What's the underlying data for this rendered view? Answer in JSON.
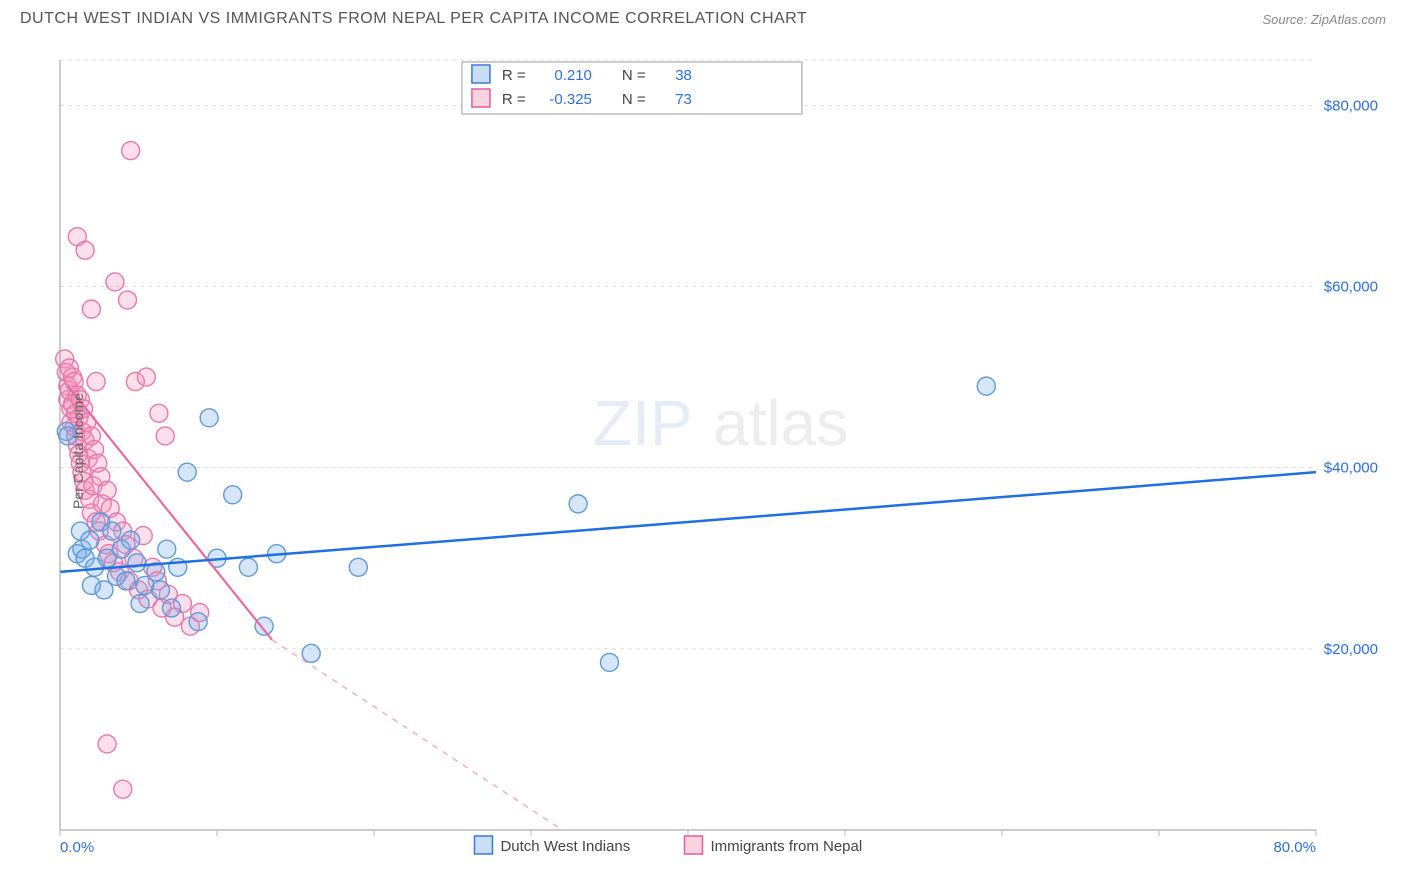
{
  "header": {
    "title": "DUTCH WEST INDIAN VS IMMIGRANTS FROM NEPAL PER CAPITA INCOME CORRELATION CHART",
    "source_prefix": "Source: ",
    "source_name": "ZipAtlas.com"
  },
  "chart": {
    "type": "scatter",
    "ylabel": "Per Capita Income",
    "background_color": "#ffffff",
    "grid_color": "#dcdcdc",
    "axis_color": "#999999",
    "xlim": [
      0,
      80
    ],
    "ylim": [
      0,
      85000
    ],
    "xticks": [
      {
        "pos": 0,
        "label": "0.0%"
      },
      {
        "pos": 10,
        "label": ""
      },
      {
        "pos": 20,
        "label": ""
      },
      {
        "pos": 30,
        "label": ""
      },
      {
        "pos": 40,
        "label": ""
      },
      {
        "pos": 50,
        "label": ""
      },
      {
        "pos": 60,
        "label": ""
      },
      {
        "pos": 70,
        "label": ""
      },
      {
        "pos": 80,
        "label": "80.0%"
      }
    ],
    "yticks": [
      {
        "pos": 20000,
        "label": "$20,000"
      },
      {
        "pos": 40000,
        "label": "$40,000"
      },
      {
        "pos": 60000,
        "label": "$60,000"
      },
      {
        "pos": 80000,
        "label": "$80,000"
      }
    ],
    "watermark": {
      "text1": "ZIP",
      "text2": "atlas",
      "color1": "#9ab8e0",
      "color2": "#b9b9b9"
    },
    "statbox": {
      "rows": [
        {
          "swatch": "blue",
          "r_label": "R =",
          "r_val": "0.210",
          "n_label": "N =",
          "n_val": "38"
        },
        {
          "swatch": "pink",
          "r_label": "R =",
          "r_val": "-0.325",
          "n_label": "N =",
          "n_val": "73"
        }
      ]
    },
    "bottom_legend": [
      {
        "swatch": "blue",
        "label": "Dutch West Indians"
      },
      {
        "swatch": "pink",
        "label": "Immigrants from Nepal"
      }
    ],
    "series": {
      "blue": {
        "color_fill": "rgba(120,170,230,0.30)",
        "color_stroke": "#5f9ad9",
        "marker_r": 9,
        "regression": {
          "x1": 0,
          "y1": 28500,
          "x2": 80,
          "y2": 39500,
          "color": "#1f6fe0"
        },
        "points": [
          [
            0.4,
            44000
          ],
          [
            0.5,
            43500
          ],
          [
            1.1,
            30500
          ],
          [
            1.3,
            33000
          ],
          [
            1.4,
            31000
          ],
          [
            1.6,
            30000
          ],
          [
            1.9,
            32000
          ],
          [
            2.0,
            27000
          ],
          [
            2.2,
            29000
          ],
          [
            2.6,
            34000
          ],
          [
            2.8,
            26500
          ],
          [
            3.0,
            30000
          ],
          [
            3.3,
            33000
          ],
          [
            3.6,
            28000
          ],
          [
            3.9,
            31000
          ],
          [
            4.2,
            27500
          ],
          [
            4.5,
            32000
          ],
          [
            4.9,
            29500
          ],
          [
            5.1,
            25000
          ],
          [
            5.4,
            27000
          ],
          [
            6.1,
            28500
          ],
          [
            6.4,
            26500
          ],
          [
            6.8,
            31000
          ],
          [
            7.1,
            24500
          ],
          [
            7.5,
            29000
          ],
          [
            8.1,
            39500
          ],
          [
            8.8,
            23000
          ],
          [
            9.5,
            45500
          ],
          [
            10.0,
            30000
          ],
          [
            11.0,
            37000
          ],
          [
            12.0,
            29000
          ],
          [
            13.0,
            22500
          ],
          [
            13.8,
            30500
          ],
          [
            16.0,
            19500
          ],
          [
            19.0,
            29000
          ],
          [
            33.0,
            36000
          ],
          [
            35.0,
            18500
          ],
          [
            59.0,
            49000
          ]
        ]
      },
      "pink": {
        "color_fill": "rgba(245,150,185,0.30)",
        "color_stroke": "#e978aa",
        "marker_r": 9,
        "regression_solid": {
          "x1": 0.5,
          "y1": 49000,
          "x2": 13.5,
          "y2": 21000,
          "color": "#e96aa0"
        },
        "regression_dash": {
          "x1": 13.5,
          "y1": 21000,
          "x2": 32.0,
          "y2": 0,
          "color": "#f3b3cc"
        },
        "points": [
          [
            0.3,
            52000
          ],
          [
            0.4,
            50500
          ],
          [
            0.5,
            49000
          ],
          [
            0.5,
            47500
          ],
          [
            0.6,
            51000
          ],
          [
            0.6,
            48500
          ],
          [
            0.7,
            46500
          ],
          [
            0.7,
            45000
          ],
          [
            0.8,
            50000
          ],
          [
            0.8,
            47000
          ],
          [
            0.9,
            44500
          ],
          [
            0.9,
            49500
          ],
          [
            1.0,
            46000
          ],
          [
            1.0,
            43500
          ],
          [
            1.1,
            48000
          ],
          [
            1.1,
            42500
          ],
          [
            1.2,
            45500
          ],
          [
            1.2,
            41500
          ],
          [
            1.3,
            47500
          ],
          [
            1.3,
            40500
          ],
          [
            1.4,
            44000
          ],
          [
            1.4,
            39500
          ],
          [
            1.5,
            46500
          ],
          [
            1.5,
            38500
          ],
          [
            1.6,
            43000
          ],
          [
            1.6,
            37500
          ],
          [
            1.7,
            45000
          ],
          [
            1.8,
            41000
          ],
          [
            1.9,
            36500
          ],
          [
            2.0,
            43500
          ],
          [
            2.0,
            35000
          ],
          [
            2.1,
            38000
          ],
          [
            2.2,
            42000
          ],
          [
            2.3,
            34000
          ],
          [
            2.4,
            40500
          ],
          [
            2.5,
            33000
          ],
          [
            2.6,
            39000
          ],
          [
            2.7,
            36000
          ],
          [
            2.9,
            31500
          ],
          [
            3.0,
            37500
          ],
          [
            3.1,
            30500
          ],
          [
            3.2,
            35500
          ],
          [
            3.4,
            29500
          ],
          [
            3.6,
            34000
          ],
          [
            3.8,
            28500
          ],
          [
            4.0,
            33000
          ],
          [
            4.2,
            31500
          ],
          [
            4.4,
            27500
          ],
          [
            4.7,
            30000
          ],
          [
            5.0,
            26500
          ],
          [
            5.3,
            32500
          ],
          [
            5.6,
            25500
          ],
          [
            5.9,
            29000
          ],
          [
            6.2,
            27500
          ],
          [
            6.5,
            24500
          ],
          [
            6.9,
            26000
          ],
          [
            7.3,
            23500
          ],
          [
            7.8,
            25000
          ],
          [
            8.3,
            22500
          ],
          [
            8.9,
            24000
          ],
          [
            1.1,
            65500
          ],
          [
            1.6,
            64000
          ],
          [
            2.0,
            57500
          ],
          [
            3.5,
            60500
          ],
          [
            4.3,
            58500
          ],
          [
            4.8,
            49500
          ],
          [
            5.5,
            50000
          ],
          [
            6.3,
            46000
          ],
          [
            6.7,
            43500
          ],
          [
            3.0,
            9500
          ],
          [
            4.0,
            4500
          ],
          [
            4.5,
            75000
          ],
          [
            2.3,
            49500
          ]
        ]
      }
    }
  }
}
